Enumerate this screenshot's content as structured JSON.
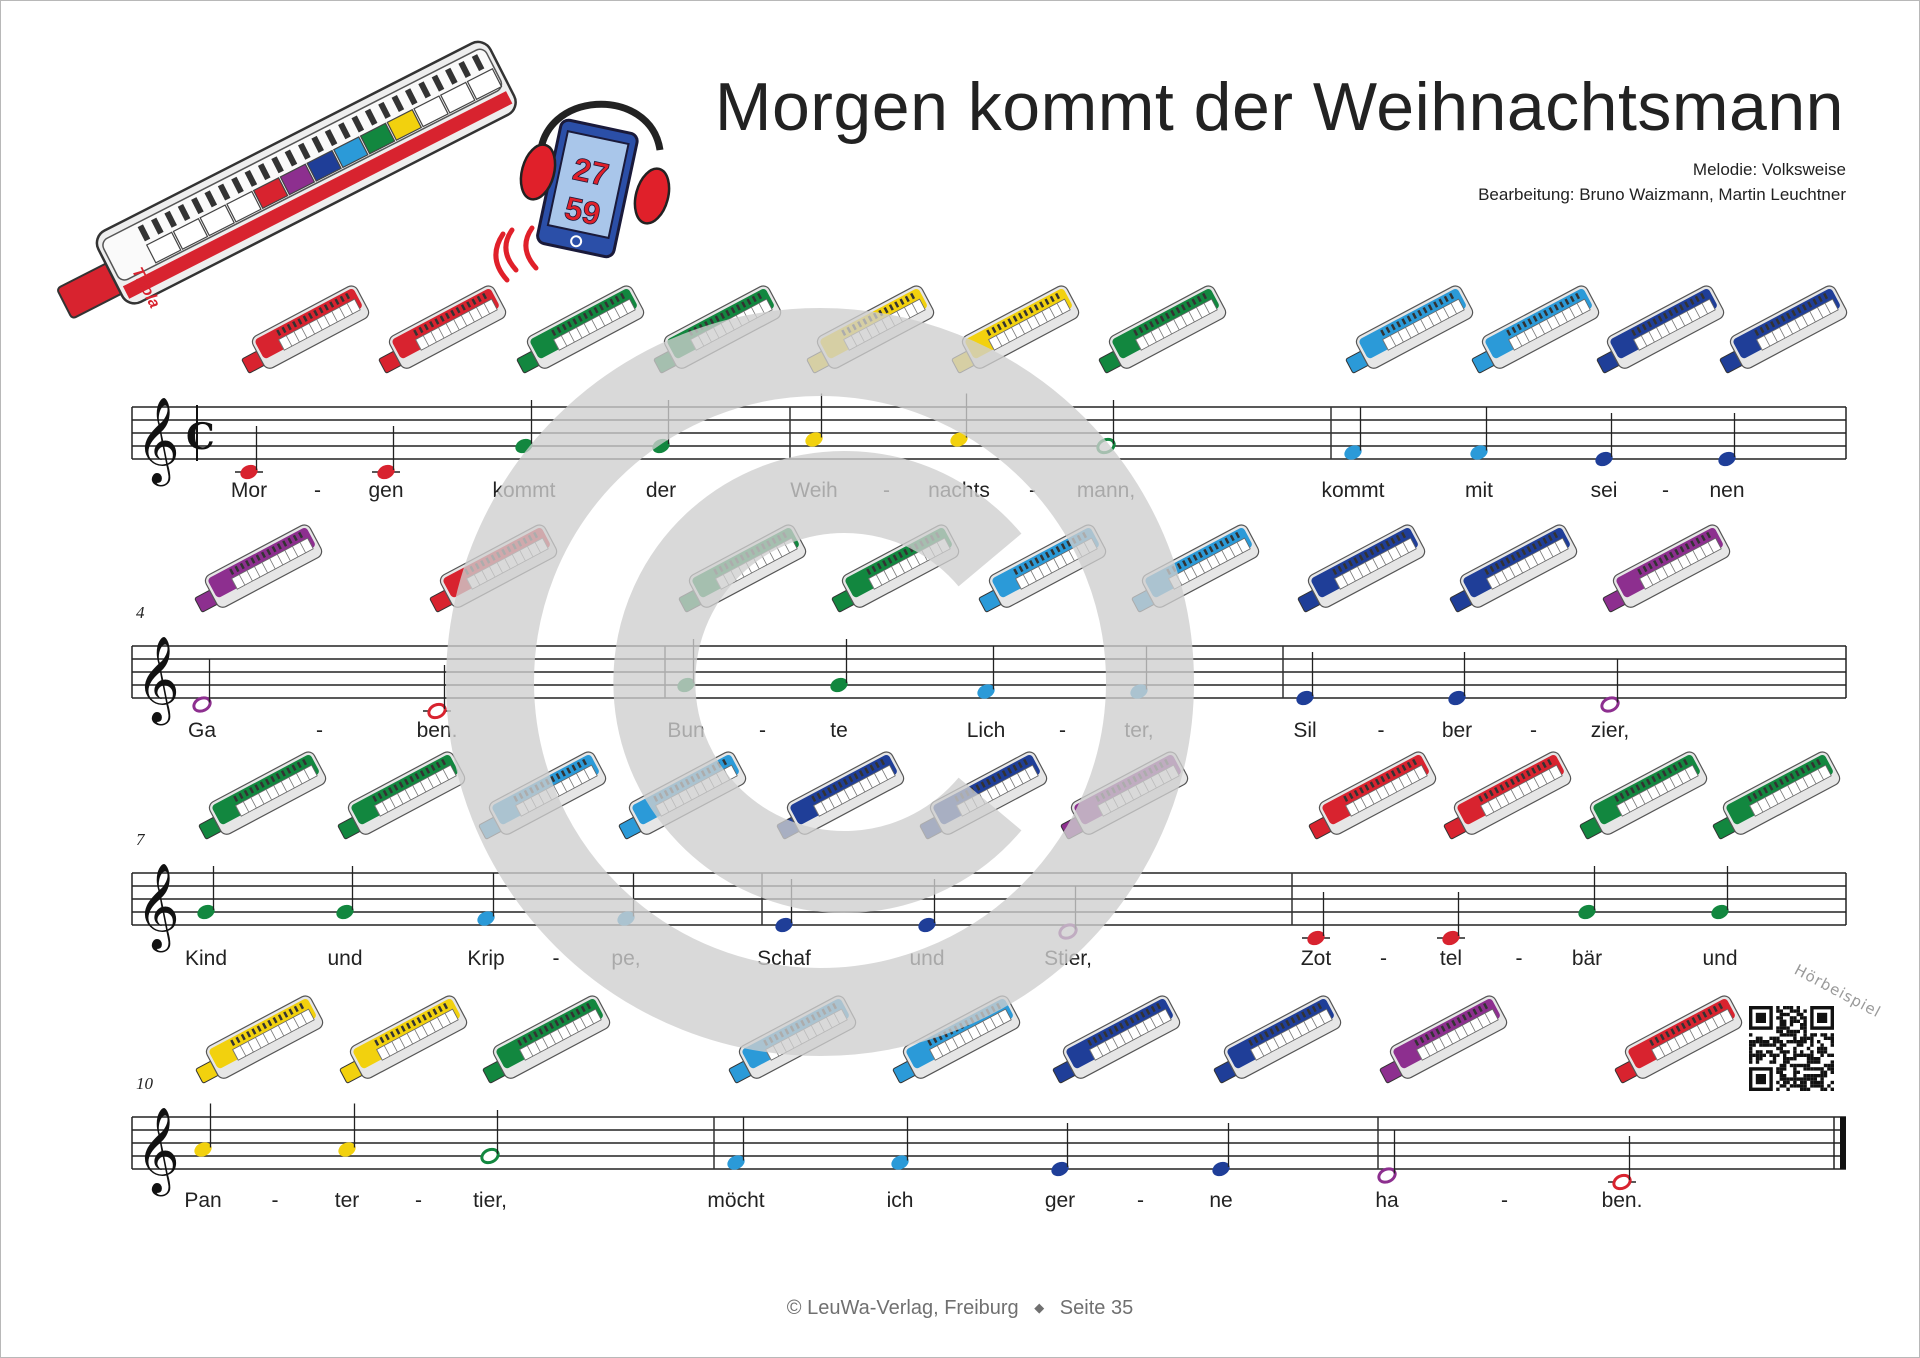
{
  "title": "Morgen kommt der Weihnachtsmann",
  "credits": {
    "melody": "Melodie: Volksweise",
    "arrangement": "Bearbeitung: Bruno Waizmann, Martin Leuchtner"
  },
  "audio_icon": {
    "icon": "headphones-tablet-icon",
    "track_numbers": [
      "27",
      "59"
    ]
  },
  "qr": {
    "label": "Hörbeispiel",
    "icon": "qr-code-icon"
  },
  "footer": {
    "copyright": "© LeuWa-Verlag, Freiburg",
    "separator": "◆",
    "page": "Seite 35"
  },
  "watermark": {
    "icon": "copyright-icon",
    "color": "#cfcfcf"
  },
  "time_signature": "cut time (alla breve)",
  "pitch_colors": {
    "C": "#d8232f",
    "D": "#8d2f8f",
    "E": "#1f3e98",
    "F": "#2b9ad8",
    "G": "#12873f",
    "A": "#f2d10e"
  },
  "systems": [
    {
      "bar_number": "",
      "notes": [
        {
          "pitch": "C",
          "dur": "quarter",
          "lyric": "Mor",
          "hyphen": true
        },
        {
          "pitch": "C",
          "dur": "quarter",
          "lyric": "gen"
        },
        {
          "pitch": "G",
          "dur": "quarter",
          "lyric": "kommt"
        },
        {
          "pitch": "G",
          "dur": "quarter",
          "lyric": "der"
        },
        {
          "pitch": "A",
          "dur": "quarter",
          "lyric": "Weih",
          "hyphen": true
        },
        {
          "pitch": "A",
          "dur": "quarter",
          "lyric": "nachts",
          "hyphen": true
        },
        {
          "pitch": "G",
          "dur": "half",
          "lyric": "mann,"
        },
        {
          "pitch": "F",
          "dur": "quarter",
          "lyric": "kommt"
        },
        {
          "pitch": "F",
          "dur": "quarter",
          "lyric": "mit"
        },
        {
          "pitch": "E",
          "dur": "quarter",
          "lyric": "sei",
          "hyphen": true
        },
        {
          "pitch": "E",
          "dur": "quarter",
          "lyric": "nen"
        }
      ]
    },
    {
      "bar_number": "4",
      "notes": [
        {
          "pitch": "D",
          "dur": "half",
          "lyric": "Ga",
          "hyphen": true
        },
        {
          "pitch": "C",
          "dur": "half",
          "lyric": "ben."
        },
        {
          "pitch": "G",
          "dur": "quarter",
          "lyric": "Bun",
          "hyphen": true
        },
        {
          "pitch": "G",
          "dur": "quarter",
          "lyric": "te"
        },
        {
          "pitch": "F",
          "dur": "quarter",
          "lyric": "Lich",
          "hyphen": true
        },
        {
          "pitch": "F",
          "dur": "quarter",
          "lyric": "ter,"
        },
        {
          "pitch": "E",
          "dur": "quarter",
          "lyric": "Sil",
          "hyphen": true
        },
        {
          "pitch": "E",
          "dur": "quarter",
          "lyric": "ber",
          "hyphen": true
        },
        {
          "pitch": "D",
          "dur": "half",
          "lyric": "zier,"
        }
      ]
    },
    {
      "bar_number": "7",
      "notes": [
        {
          "pitch": "G",
          "dur": "quarter",
          "lyric": "Kind"
        },
        {
          "pitch": "G",
          "dur": "quarter",
          "lyric": "und"
        },
        {
          "pitch": "F",
          "dur": "quarter",
          "lyric": "Krip",
          "hyphen": true
        },
        {
          "pitch": "F",
          "dur": "quarter",
          "lyric": "pe,"
        },
        {
          "pitch": "E",
          "dur": "quarter",
          "lyric": "Schaf"
        },
        {
          "pitch": "E",
          "dur": "quarter",
          "lyric": "und"
        },
        {
          "pitch": "D",
          "dur": "half",
          "lyric": "Stier,"
        },
        {
          "pitch": "C",
          "dur": "quarter",
          "lyric": "Zot",
          "hyphen": true
        },
        {
          "pitch": "C",
          "dur": "quarter",
          "lyric": "tel",
          "hyphen": true
        },
        {
          "pitch": "G",
          "dur": "quarter",
          "lyric": "bär"
        },
        {
          "pitch": "G",
          "dur": "quarter",
          "lyric": "und"
        }
      ]
    },
    {
      "bar_number": "10",
      "notes": [
        {
          "pitch": "A",
          "dur": "quarter",
          "lyric": "Pan",
          "hyphen": true
        },
        {
          "pitch": "A",
          "dur": "quarter",
          "lyric": "ter",
          "hyphen": true
        },
        {
          "pitch": "G",
          "dur": "half",
          "lyric": "tier,"
        },
        {
          "pitch": "F",
          "dur": "quarter",
          "lyric": "möcht"
        },
        {
          "pitch": "F",
          "dur": "quarter",
          "lyric": "ich"
        },
        {
          "pitch": "E",
          "dur": "quarter",
          "lyric": "ger",
          "hyphen": true
        },
        {
          "pitch": "E",
          "dur": "quarter",
          "lyric": "ne"
        },
        {
          "pitch": "D",
          "dur": "half",
          "lyric": "ha",
          "hyphen": true
        },
        {
          "pitch": "C",
          "dur": "half",
          "lyric": "ben."
        }
      ]
    }
  ]
}
